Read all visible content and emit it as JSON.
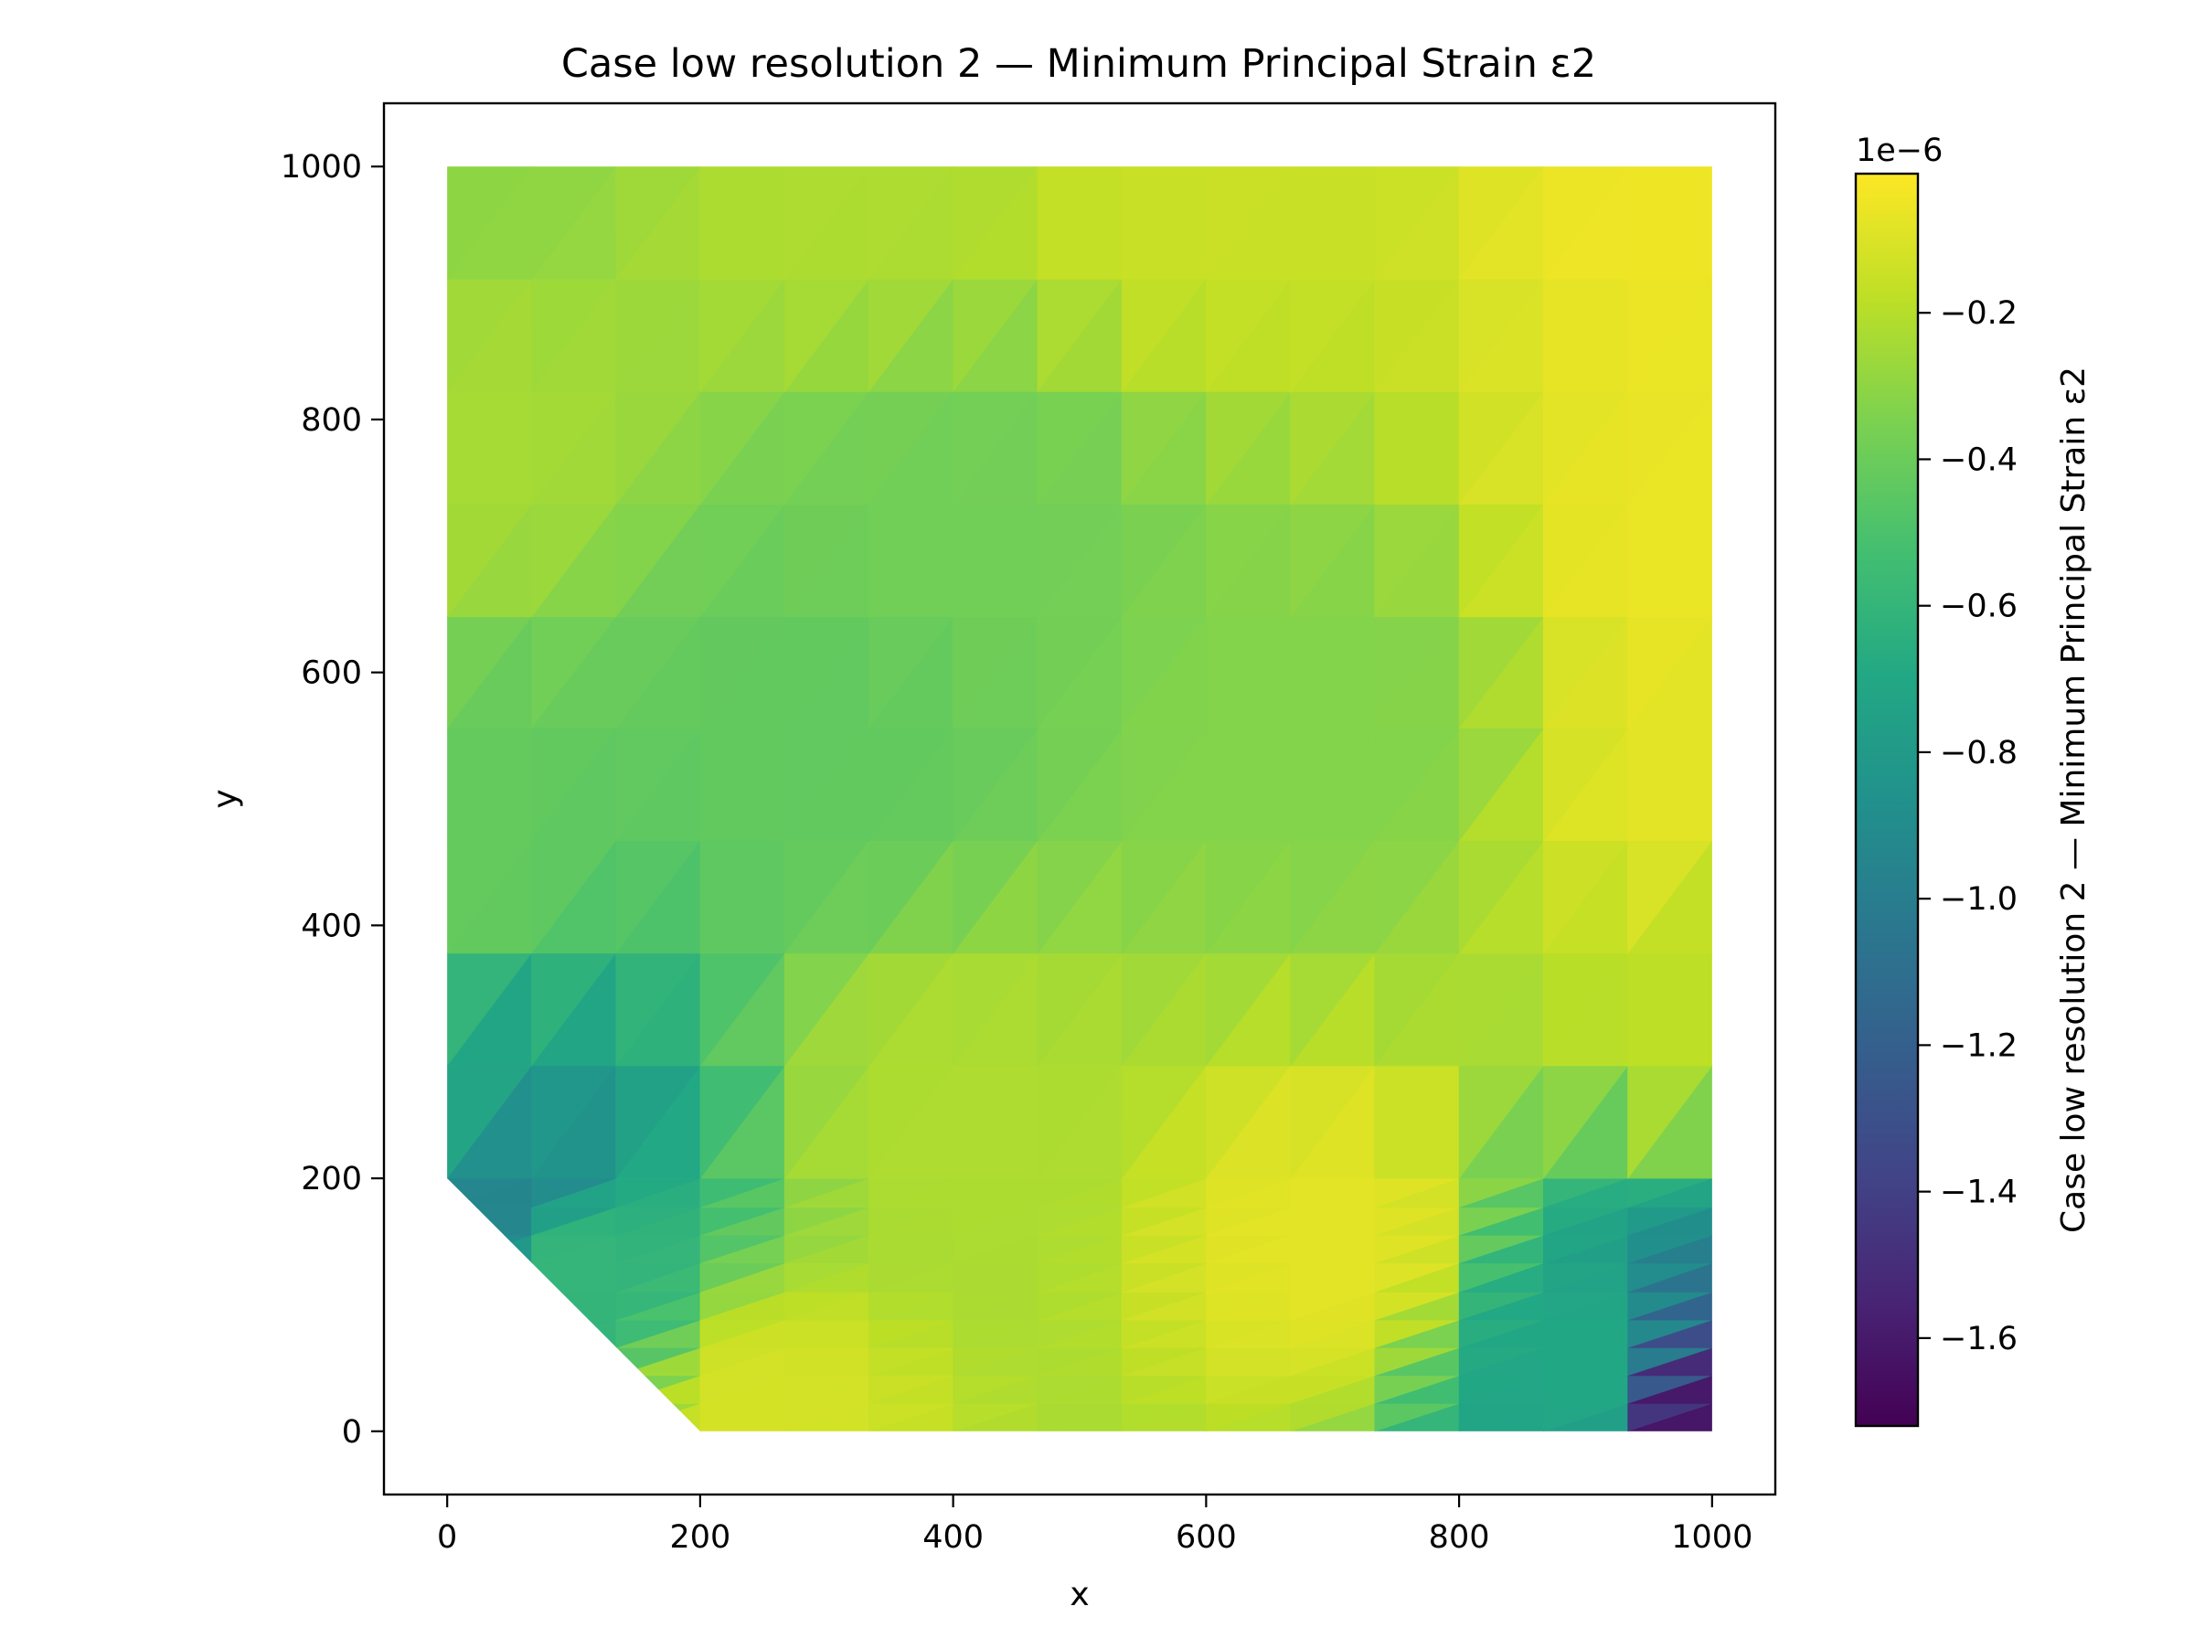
{
  "chart_data": {
    "type": "heatmap",
    "plot_kind": "triangulated contour field (tripcolor)",
    "title": "Case low resolution 2 — Minimum Principal Strain ε2",
    "xlabel": "x",
    "ylabel": "y",
    "xlim": [
      -50,
      1050
    ],
    "ylim": [
      -50,
      1050
    ],
    "xticks": [
      0,
      200,
      400,
      600,
      800,
      1000
    ],
    "yticks": [
      0,
      200,
      400,
      600,
      800,
      1000
    ],
    "grid": false,
    "domain_outline": [
      [
        0,
        200
      ],
      [
        0,
        1000
      ],
      [
        1000,
        1000
      ],
      [
        1000,
        0
      ],
      [
        200,
        0
      ]
    ],
    "colormap": "viridis",
    "colorbar": {
      "label": "Case low resolution 2 — Minimum Principal Strain ε2",
      "offset_text": "1e−6",
      "range": [
        -1.72,
        -0.01
      ],
      "ticks": [
        -1.6,
        -1.4,
        -1.2,
        -1.0,
        -0.8,
        -0.6,
        -0.4,
        -0.2
      ],
      "tick_labels": [
        "−1.6",
        "−1.4",
        "−1.2",
        "−1.0",
        "−0.8",
        "−0.6",
        "−0.4",
        "−0.2"
      ]
    },
    "field_samples_1e-6": [
      {
        "x": 0,
        "y": 1000,
        "v": -0.3
      },
      {
        "x": 300,
        "y": 1000,
        "v": -0.22
      },
      {
        "x": 600,
        "y": 1000,
        "v": -0.15
      },
      {
        "x": 1000,
        "y": 1000,
        "v": -0.05
      },
      {
        "x": 0,
        "y": 800,
        "v": -0.24
      },
      {
        "x": 400,
        "y": 700,
        "v": -0.38
      },
      {
        "x": 1000,
        "y": 700,
        "v": -0.06
      },
      {
        "x": 300,
        "y": 550,
        "v": -0.43
      },
      {
        "x": 700,
        "y": 550,
        "v": -0.33
      },
      {
        "x": 1000,
        "y": 500,
        "v": -0.08
      },
      {
        "x": 0,
        "y": 450,
        "v": -0.42
      },
      {
        "x": 1000,
        "y": 350,
        "v": -0.18
      },
      {
        "x": 0,
        "y": 250,
        "v": -0.72
      },
      {
        "x": 50,
        "y": 190,
        "v": -0.95
      },
      {
        "x": 100,
        "y": 130,
        "v": -0.6
      },
      {
        "x": 400,
        "y": 250,
        "v": -0.22
      },
      {
        "x": 700,
        "y": 150,
        "v": -0.08
      },
      {
        "x": 250,
        "y": 10,
        "v": -0.12
      },
      {
        "x": 900,
        "y": 50,
        "v": -0.7
      },
      {
        "x": 1000,
        "y": 10,
        "v": -1.62
      }
    ]
  }
}
